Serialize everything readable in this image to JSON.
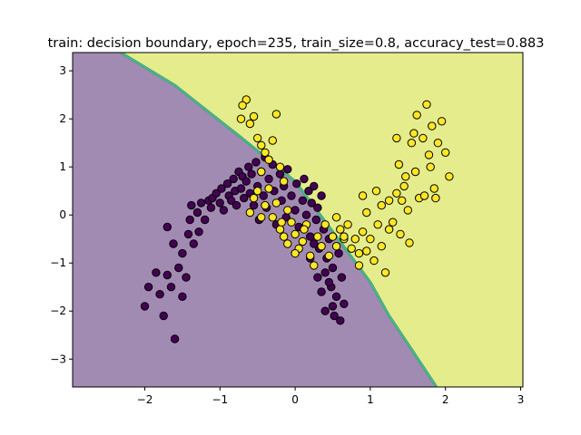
{
  "chart_data": {
    "type": "scatter",
    "title": "train: decision boundary, epoch=235, train_size=0.8, accuracy_test=0.883",
    "xlabel": "",
    "ylabel": "",
    "xlim": [
      -2.96,
      3.03
    ],
    "ylim": [
      -3.58,
      3.38
    ],
    "x_ticks": [
      -2,
      -1,
      0,
      1,
      2,
      3
    ],
    "y_ticks": [
      -3,
      -2,
      -1,
      0,
      1,
      2,
      3
    ],
    "x_tick_labels": [
      "−2",
      "−1",
      "0",
      "1",
      "2",
      "3"
    ],
    "y_tick_labels": [
      "−3",
      "−2",
      "−1",
      "0",
      "1",
      "2",
      "3"
    ],
    "grid": false,
    "legend": "none",
    "decision_boundary": {
      "points": [
        [
          -2.32,
          3.38
        ],
        [
          -1.6,
          2.7
        ],
        [
          -0.75,
          1.65
        ],
        [
          0.0,
          0.7
        ],
        [
          0.55,
          -0.45
        ],
        [
          1.0,
          -1.4
        ],
        [
          1.25,
          -2.1
        ],
        [
          1.55,
          -2.8
        ],
        [
          1.88,
          -3.58
        ]
      ],
      "class0_region_color": "#a28bb3",
      "class1_region_color": "#e5ec8b",
      "edge_colors": [
        "#3aa08a",
        "#4fc07a"
      ]
    },
    "series": [
      {
        "class": 0,
        "color": "#440154",
        "points": [
          [
            -2.0,
            -1.9
          ],
          [
            -1.95,
            -1.5
          ],
          [
            -1.85,
            -1.2
          ],
          [
            -1.8,
            -1.65
          ],
          [
            -1.75,
            -2.1
          ],
          [
            -1.7,
            -1.25
          ],
          [
            -1.65,
            -1.5
          ],
          [
            -1.7,
            -0.25
          ],
          [
            -1.6,
            -2.58
          ],
          [
            -1.62,
            -0.6
          ],
          [
            -1.55,
            -1.1
          ],
          [
            -1.5,
            -0.8
          ],
          [
            -1.5,
            -1.7
          ],
          [
            -1.45,
            -1.3
          ],
          [
            -1.42,
            -0.4
          ],
          [
            -1.4,
            -0.1
          ],
          [
            -1.38,
            0.2
          ],
          [
            -1.35,
            -0.6
          ],
          [
            -1.3,
            0.05
          ],
          [
            -1.28,
            -0.35
          ],
          [
            -1.25,
            0.25
          ],
          [
            -1.2,
            -0.1
          ],
          [
            -1.15,
            0.3
          ],
          [
            -1.12,
            0.15
          ],
          [
            -1.1,
            0.35
          ],
          [
            -1.05,
            0.45
          ],
          [
            -1.0,
            0.25
          ],
          [
            -0.98,
            0.55
          ],
          [
            -0.95,
            0.1
          ],
          [
            -0.9,
            0.65
          ],
          [
            -0.88,
            0.4
          ],
          [
            -0.85,
            0.3
          ],
          [
            -0.82,
            0.75
          ],
          [
            -0.8,
            0.5
          ],
          [
            -0.78,
            0.2
          ],
          [
            -0.75,
            0.9
          ],
          [
            -0.72,
            0.55
          ],
          [
            -0.7,
            0.8
          ],
          [
            -0.68,
            0.35
          ],
          [
            -0.65,
            0.7
          ],
          [
            -0.62,
            1.0
          ],
          [
            -0.6,
            0.45
          ],
          [
            -0.58,
            0.85
          ],
          [
            -0.55,
            0.2
          ],
          [
            -0.52,
            1.1
          ],
          [
            -0.5,
            0.6
          ],
          [
            -0.48,
            -0.1
          ],
          [
            -0.45,
            0.9
          ],
          [
            -0.42,
            0.4
          ],
          [
            -0.4,
            1.2
          ],
          [
            -0.38,
            0.15
          ],
          [
            -0.35,
            0.75
          ],
          [
            -0.3,
            1.05
          ],
          [
            -0.28,
            0.5
          ],
          [
            -0.25,
            -0.2
          ],
          [
            -0.2,
            0.85
          ],
          [
            -0.18,
            0.3
          ],
          [
            -0.15,
            0.6
          ],
          [
            -0.12,
            -0.05
          ],
          [
            -0.1,
            0.95
          ],
          [
            -0.05,
            0.4
          ],
          [
            0.0,
            0.1
          ],
          [
            0.02,
            0.65
          ],
          [
            0.05,
            -0.25
          ],
          [
            0.1,
            0.3
          ],
          [
            0.12,
            0.75
          ],
          [
            0.15,
            0.0
          ],
          [
            0.18,
            0.5
          ],
          [
            0.2,
            -0.45
          ],
          [
            0.22,
            0.25
          ],
          [
            0.25,
            0.6
          ],
          [
            0.28,
            -0.1
          ],
          [
            0.3,
            0.15
          ],
          [
            0.32,
            -0.7
          ],
          [
            0.35,
            0.4
          ],
          [
            0.38,
            -0.3
          ],
          [
            0.4,
            -1.2
          ],
          [
            0.42,
            -0.9
          ],
          [
            0.45,
            -0.5
          ],
          [
            0.48,
            -1.5
          ],
          [
            0.5,
            -1.1
          ],
          [
            0.52,
            -2.1
          ],
          [
            0.55,
            -1.7
          ],
          [
            0.58,
            -0.8
          ],
          [
            0.6,
            -2.2
          ],
          [
            0.62,
            -1.3
          ],
          [
            0.65,
            -1.85
          ],
          [
            0.3,
            -1.3
          ],
          [
            0.2,
            -0.9
          ],
          [
            0.35,
            -1.6
          ],
          [
            0.25,
            -0.6
          ],
          [
            0.4,
            -2.0
          ],
          [
            0.45,
            -1.4
          ],
          [
            0.5,
            -1.9
          ]
        ]
      },
      {
        "class": 1,
        "color": "#fde725",
        "points": [
          [
            -0.65,
            2.4
          ],
          [
            -0.7,
            2.28
          ],
          [
            -0.72,
            2.0
          ],
          [
            -0.6,
            1.9
          ],
          [
            -0.55,
            2.05
          ],
          [
            -0.5,
            1.6
          ],
          [
            -0.45,
            1.45
          ],
          [
            -0.4,
            1.3
          ],
          [
            -0.35,
            1.15
          ],
          [
            -0.3,
            1.55
          ],
          [
            -0.25,
            2.1
          ],
          [
            -0.2,
            1.0
          ],
          [
            -0.15,
            0.7
          ],
          [
            -0.45,
            0.9
          ],
          [
            -0.5,
            0.5
          ],
          [
            -0.4,
            0.2
          ],
          [
            -0.3,
            -0.05
          ],
          [
            -0.2,
            -0.3
          ],
          [
            -0.15,
            -0.45
          ],
          [
            -0.1,
            -0.6
          ],
          [
            -0.05,
            -0.15
          ],
          [
            0.0,
            -0.4
          ],
          [
            0.05,
            -0.7
          ],
          [
            0.1,
            -0.55
          ],
          [
            0.15,
            -0.2
          ],
          [
            0.2,
            -0.85
          ],
          [
            0.25,
            -1.05
          ],
          [
            0.3,
            -0.45
          ],
          [
            0.35,
            -0.65
          ],
          [
            0.4,
            -0.2
          ],
          [
            0.45,
            -0.85
          ],
          [
            0.5,
            -0.45
          ],
          [
            0.55,
            -0.65
          ],
          [
            0.6,
            -0.3
          ],
          [
            0.65,
            -0.5
          ],
          [
            0.7,
            -0.2
          ],
          [
            0.75,
            -0.7
          ],
          [
            0.8,
            -0.5
          ],
          [
            0.85,
            -1.05
          ],
          [
            0.9,
            -0.35
          ],
          [
            0.95,
            -0.75
          ],
          [
            1.0,
            -0.5
          ],
          [
            1.05,
            -0.95
          ],
          [
            1.1,
            -0.2
          ],
          [
            1.15,
            -0.65
          ],
          [
            1.2,
            -1.2
          ],
          [
            1.25,
            0.3
          ],
          [
            1.3,
            -0.15
          ],
          [
            1.35,
            0.45
          ],
          [
            1.4,
            -0.4
          ],
          [
            1.45,
            0.6
          ],
          [
            1.5,
            0.1
          ],
          [
            1.55,
            1.5
          ],
          [
            1.6,
            0.9
          ],
          [
            1.65,
            0.35
          ],
          [
            1.7,
            1.6
          ],
          [
            1.75,
            2.3
          ],
          [
            1.78,
            1.25
          ],
          [
            1.8,
            1.0
          ],
          [
            1.85,
            0.55
          ],
          [
            1.9,
            1.5
          ],
          [
            1.95,
            1.95
          ],
          [
            2.0,
            1.3
          ],
          [
            2.05,
            0.8
          ],
          [
            1.72,
            0.4
          ],
          [
            1.62,
            2.08
          ],
          [
            1.58,
            1.7
          ],
          [
            1.47,
            0.8
          ],
          [
            1.38,
            1.05
          ],
          [
            1.25,
            -0.3
          ],
          [
            1.15,
            0.2
          ],
          [
            1.08,
            0.5
          ],
          [
            0.95,
            0.05
          ],
          [
            0.85,
            -0.8
          ],
          [
            0.9,
            0.4
          ],
          [
            0.65,
            -0.45
          ],
          [
            0.55,
            -0.05
          ],
          [
            1.82,
            1.85
          ],
          [
            1.87,
            0.35
          ],
          [
            1.52,
            -0.58
          ],
          [
            1.35,
            1.6
          ],
          [
            1.42,
            0.3
          ],
          [
            -0.55,
            0.35
          ],
          [
            -0.6,
            0.05
          ],
          [
            -0.45,
            -0.05
          ],
          [
            -0.35,
            0.55
          ],
          [
            -0.25,
            0.25
          ],
          [
            -0.18,
            -0.15
          ],
          [
            -0.1,
            0.1
          ],
          [
            0.0,
            -0.8
          ],
          [
            0.12,
            -0.3
          ]
        ]
      }
    ]
  }
}
